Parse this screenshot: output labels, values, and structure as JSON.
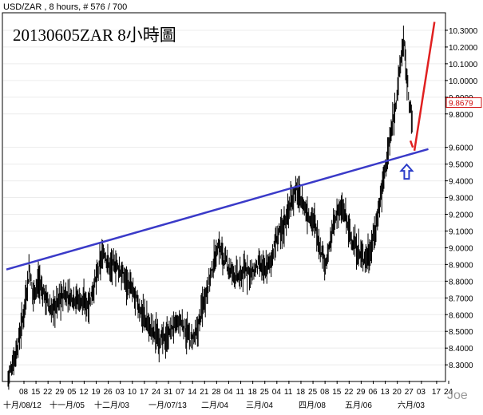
{
  "header": {
    "info": "USD/ZAR , 8 hours, # 576 / 700"
  },
  "chart_data": {
    "type": "ohlc",
    "symbol": "USD/ZAR",
    "timeframe": "8 hours",
    "title": "20130605ZAR 8小時圖",
    "watermark": "Joe",
    "ylim": [
      8.21,
      10.4
    ],
    "y_ticks": [
      "10.3000",
      "10.2000",
      "10.1000",
      "10.0000",
      "9.9000",
      "9.8000",
      "9.6000",
      "9.5000",
      "9.4000",
      "9.3000",
      "9.2000",
      "9.1000",
      "9.0000",
      "8.9000",
      "8.8000",
      "8.7000",
      "8.6000",
      "8.5000",
      "8.4000",
      "8.3000"
    ],
    "current_price": "9.8679",
    "x_day_labels": [
      "08",
      "15",
      "22",
      "29",
      "05",
      "12",
      "19",
      "26",
      "03",
      "10",
      "17",
      "24",
      "31",
      "07",
      "14",
      "21",
      "28",
      "04",
      "11",
      "18",
      "25",
      "04",
      "11",
      "18",
      "25",
      "08",
      "15",
      "22",
      "29",
      "06",
      "13",
      "20",
      "27",
      "03",
      "17",
      "24"
    ],
    "x_month_labels": [
      "十月/08/12",
      "十一月/05",
      "十二月/03",
      "一月/07/13",
      "二月/04",
      "三月/04",
      "四月/08",
      "五月/06",
      "六月/03"
    ],
    "price_path": [
      [
        0,
        8.22
      ],
      [
        3,
        8.4
      ],
      [
        5,
        8.6
      ],
      [
        7,
        8.88
      ],
      [
        8,
        8.72
      ],
      [
        10,
        8.8
      ],
      [
        14,
        8.62
      ],
      [
        18,
        8.72
      ],
      [
        22,
        8.7
      ],
      [
        26,
        8.66
      ],
      [
        28,
        8.78
      ],
      [
        31,
        8.98
      ],
      [
        33,
        8.88
      ],
      [
        35,
        8.9
      ],
      [
        37,
        8.84
      ],
      [
        40,
        8.75
      ],
      [
        43,
        8.62
      ],
      [
        46,
        8.52
      ],
      [
        49,
        8.46
      ],
      [
        51,
        8.45
      ],
      [
        53,
        8.52
      ],
      [
        56,
        8.56
      ],
      [
        59,
        8.45
      ],
      [
        61,
        8.48
      ],
      [
        63,
        8.66
      ],
      [
        66,
        8.86
      ],
      [
        68,
        9.02
      ],
      [
        70,
        8.93
      ],
      [
        72,
        8.86
      ],
      [
        75,
        8.82
      ],
      [
        77,
        8.88
      ],
      [
        79,
        8.84
      ],
      [
        81,
        8.9
      ],
      [
        83,
        8.86
      ],
      [
        85,
        8.92
      ],
      [
        87,
        9.06
      ],
      [
        89,
        9.12
      ],
      [
        91,
        9.24
      ],
      [
        93,
        9.35
      ],
      [
        95,
        9.28
      ],
      [
        97,
        9.2
      ],
      [
        99,
        9.16
      ],
      [
        101,
        9.0
      ],
      [
        103,
        8.9
      ],
      [
        105,
        9.1
      ],
      [
        107,
        9.24
      ],
      [
        109,
        9.2
      ],
      [
        111,
        9.06
      ],
      [
        113,
        8.98
      ],
      [
        115,
        8.94
      ],
      [
        117,
        8.96
      ],
      [
        119,
        9.12
      ],
      [
        121,
        9.36
      ],
      [
        123,
        9.58
      ],
      [
        125,
        9.8
      ],
      [
        127,
        10.1
      ],
      [
        128,
        10.25
      ],
      [
        129,
        10.02
      ],
      [
        130,
        9.85
      ],
      [
        131,
        9.72
      ]
    ],
    "trendline": {
      "points": [
        [
          8.87,
          0
        ],
        [
          9.59,
          136
        ]
      ],
      "color": "#3a3ac8"
    },
    "projection": {
      "points": [
        [
          9.58,
          131.5
        ],
        [
          10.35,
          138
        ]
      ],
      "color": "#e02020"
    },
    "marker": {
      "type": "up-arrow",
      "at": [
        9.45,
        129
      ],
      "color": "#2a3cc8"
    }
  }
}
